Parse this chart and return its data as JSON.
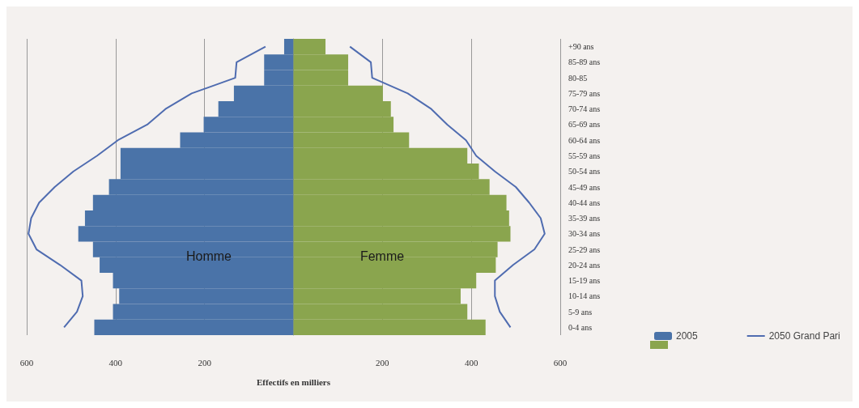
{
  "chart_data": {
    "type": "bar",
    "orientation": "horizontal",
    "xlabel": "Effectifs en milliers",
    "categories": [
      "+90 ans",
      "85-89 ans",
      "80-85",
      "75-79 ans",
      "70-74 ans",
      "65-69 ans",
      "60-64 ans",
      "55-59 ans",
      "50-54 ans",
      "45-49 ans",
      "40-44 ans",
      "35-39 ans",
      "30-34 ans",
      "25-29 ans",
      "20-24 ans",
      "15-19 ans",
      "10-14 ans",
      "5-9 ans",
      "0-4 ans"
    ],
    "series": [
      {
        "name": "2005",
        "color": "#4a73a8",
        "values": [
          -21,
          -66,
          -66,
          -134,
          -169,
          -202,
          -255,
          -389,
          -389,
          -415,
          -451,
          -469,
          -484,
          -451,
          -436,
          -406,
          -392,
          -406,
          -448
        ]
      },
      {
        "color": "#8aa54e",
        "values": [
          72,
          123,
          123,
          201,
          219,
          225,
          260,
          391,
          417,
          441,
          479,
          485,
          488,
          459,
          455,
          411,
          376,
          391,
          432
        ]
      },
      {
        "name": "2050 Grand Pari",
        "type": "line",
        "color": "#4f6cb0",
        "values": [
          -63,
          -128,
          -131,
          -229,
          -288,
          -329,
          -395,
          -442,
          -495,
          -537,
          -572,
          -590,
          -596,
          -578,
          -525,
          -477,
          -474,
          -487,
          -516
        ]
      },
      {
        "type": "line",
        "color": "#4f6cb0",
        "values": [
          127,
          174,
          177,
          257,
          310,
          346,
          388,
          411,
          453,
          500,
          530,
          556,
          565,
          542,
          494,
          453,
          453,
          464,
          488
        ]
      }
    ],
    "xlim": [
      -600,
      600
    ],
    "xticks": [
      {
        "value": -600,
        "label": "600"
      },
      {
        "value": -400,
        "label": "400"
      },
      {
        "value": -200,
        "label": "200"
      },
      {
        "value": 200,
        "label": "200"
      },
      {
        "value": 400,
        "label": "400"
      },
      {
        "value": 600,
        "label": "600"
      }
    ],
    "grid": "x",
    "legend": "bottom right",
    "marker": "none",
    "line_style": "solid",
    "stacked": true,
    "annotations": [
      "Homme",
      "Femme"
    ]
  }
}
